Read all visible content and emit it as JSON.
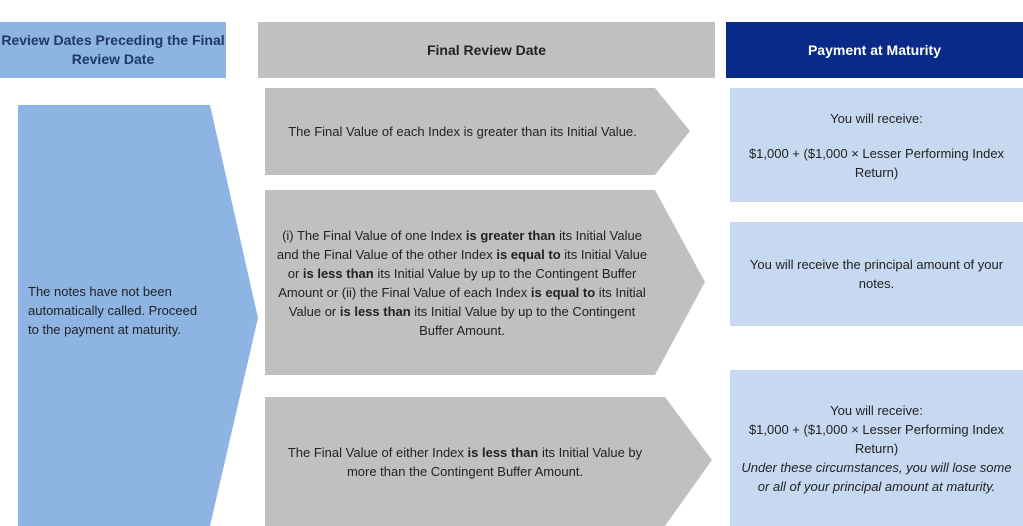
{
  "headers": [
    "Review Dates Preceding the Final Review Date",
    "Final Review Date",
    "Payment at Maturity"
  ],
  "left_note": "The notes have not been automatically called.  Proceed to the payment at maturity.",
  "conditions": [
    [
      {
        "text": "The Final Value of each Index is greater than its Initial Value.",
        "bold": false
      }
    ],
    [
      {
        "text": "(i) The Final Value of one Index ",
        "bold": false
      },
      {
        "text": "is greater than",
        "bold": true
      },
      {
        "text": " its Initial Value and the Final Value of the other Index ",
        "bold": false
      },
      {
        "text": "is equal to",
        "bold": true
      },
      {
        "text": " its Initial Value or ",
        "bold": false
      },
      {
        "text": "is less than",
        "bold": true
      },
      {
        "text": " its Initial Value by up to the Contingent Buffer Amount or (ii) the Final Value of each Index ",
        "bold": false
      },
      {
        "text": "is equal to",
        "bold": true
      },
      {
        "text": " its Initial Value or ",
        "bold": false
      },
      {
        "text": "is less than",
        "bold": true
      },
      {
        "text": " its Initial Value by up to the Contingent Buffer Amount.",
        "bold": false
      }
    ],
    [
      {
        "text": "The Final Value of either Index ",
        "bold": false
      },
      {
        "text": "is less than",
        "bold": true
      },
      {
        "text": " its Initial Value by more than the Contingent Buffer Amount.",
        "bold": false
      }
    ]
  ],
  "payments": [
    {
      "lines": [
        "You will receive:",
        "$1,000 + ($1,000 × Lesser Performing Index Return)"
      ]
    },
    {
      "lines": [
        "You will receive the principal amount of your notes."
      ]
    },
    {
      "lines": [
        "You will receive:",
        "$1,000 + ($1,000 × Lesser Performing Index Return)"
      ],
      "note": "Under these circumstances, you will lose some or all of your principal amount at maturity."
    }
  ]
}
